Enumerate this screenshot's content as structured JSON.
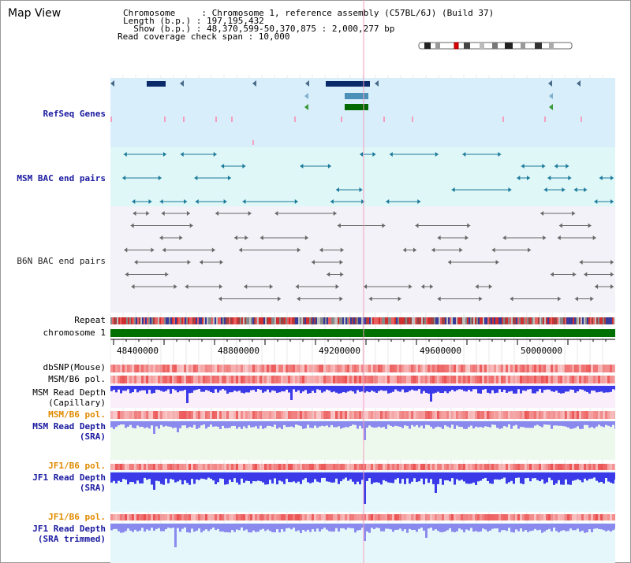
{
  "window": {
    "title": "Map View"
  },
  "header": {
    "chromosome": "Chromosome     : Chromosome 1, reference assembly (C57BL/6J) (Build 37)",
    "length": "Length (b.p.) : 197,195,432",
    "show": "  Show (b.p.) : 48,370,599-50,370,875 : 2,000,277 bp",
    "coverage": "Read coverage check span : 10,000"
  },
  "tracks": {
    "refseq": "RefSeq Genes",
    "msm_bac": "MSM BAC end pairs",
    "b6n_bac": "B6N BAC end pairs",
    "repeat": "Repeat",
    "chromosome": "chromosome 1",
    "dbsnp": "dbSNP(Mouse)",
    "msm_b6_pol": "MSM/B6 pol.",
    "msm_depth_cap_1": "MSM Read Depth",
    "msm_depth_cap_2": "(Capillary)",
    "msm_b6_pol_2": "MSM/B6 pol.",
    "msm_depth_sra_1": "MSM Read Depth",
    "msm_depth_sra_2": "(SRA)",
    "jf1_pol_1": "JF1/B6 pol.",
    "jf1_depth_1": "JF1 Read Depth",
    "jf1_depth_1b": "(SRA)",
    "jf1_pol_2": "JF1/B6 pol.",
    "jf1_depth_2": "JF1 Read Depth",
    "jf1_depth_2b": "(SRA trimmed)"
  },
  "axis": {
    "ticks": [
      "48400000",
      "48800000",
      "49200000",
      "49600000",
      "50000000"
    ]
  },
  "colors": {
    "refseq_bg": "#d8eefa",
    "bac_bg": "#e0f7f8",
    "b6n_bg": "#f2f2f8",
    "chromosome_bar": "#007000",
    "depth_bar": "#3a3ae8",
    "depth_bar_light": "#8a8aee",
    "pol_red": "#e83030",
    "highlight": "#f4a0c0"
  }
}
